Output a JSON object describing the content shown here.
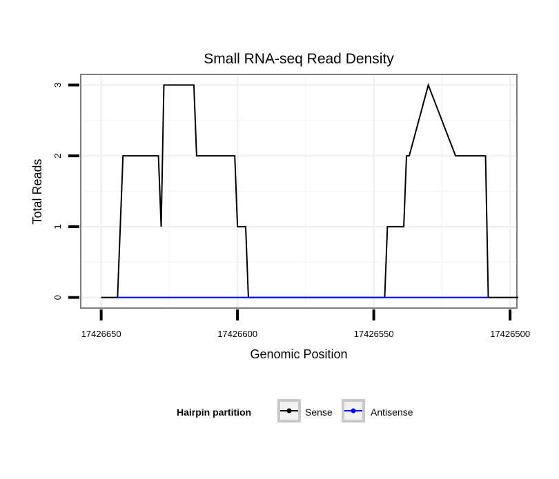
{
  "chart_data": {
    "type": "line",
    "title": "Small RNA-seq Read Density",
    "xlabel": "Genomic Position",
    "ylabel": "Total Reads",
    "x_reversed": true,
    "xlim": [
      17426657.5,
      17426497.5
    ],
    "ylim": [
      -0.15,
      3.15
    ],
    "x_ticks": [
      17426650,
      17426600,
      17426550,
      17426500
    ],
    "x_tick_labels": [
      "17426650",
      "17426600",
      "17426550",
      "17426500"
    ],
    "y_ticks": [
      0,
      1,
      2,
      3
    ],
    "y_tick_labels": [
      "0",
      "1",
      "2",
      "3"
    ],
    "grid": true,
    "legend": {
      "title": "Hairpin partition",
      "position": "bottom"
    },
    "series": [
      {
        "name": "Sense",
        "color": "#000000",
        "x": [
          17426650,
          17426644,
          17426642,
          17426629,
          17426628,
          17426627,
          17426616,
          17426615,
          17426601,
          17426600,
          17426597,
          17426596,
          17426546,
          17426545,
          17426539,
          17426538,
          17426537,
          17426530,
          17426520,
          17426519,
          17426509,
          17426508,
          17426497
        ],
        "y": [
          0,
          0,
          2,
          2,
          1,
          3,
          3,
          2,
          2,
          1,
          1,
          0,
          0,
          1,
          1,
          2,
          2,
          3,
          2,
          2,
          2,
          0,
          0
        ]
      },
      {
        "name": "Antisense",
        "color": "#0000ff",
        "x": [
          17426644,
          17426596,
          17426546,
          17426508
        ],
        "y": [
          0,
          0,
          0,
          0
        ]
      }
    ]
  }
}
